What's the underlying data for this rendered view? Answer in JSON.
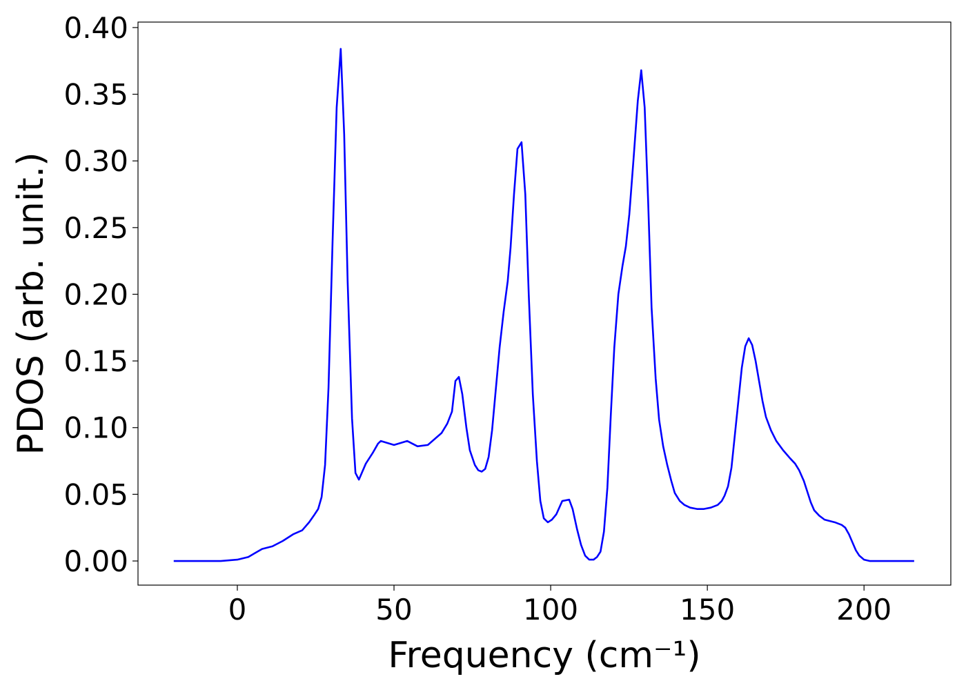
{
  "chart_data": {
    "type": "line",
    "xlabel": "Frequency (cm⁻¹)",
    "ylabel": "PDOS (arb. unit.)",
    "x": [
      -20.3,
      -5.3,
      0,
      3.5,
      5.7,
      7.9,
      11.2,
      14.5,
      17.8,
      20.7,
      22.9,
      24.4,
      25.8,
      26.9,
      28,
      29.1,
      30.4,
      31.7,
      33,
      34.1,
      35.2,
      36.6,
      37.7,
      38.8,
      41,
      43.2,
      44.9,
      45.8,
      50,
      54.2,
      57.5,
      60.8,
      65.2,
      67,
      68.5,
      69.6,
      70.7,
      71.8,
      73.1,
      74.2,
      75.8,
      76.9,
      78,
      79.1,
      80.2,
      81.3,
      83.7,
      85,
      86.3,
      87.2,
      88.3,
      89.4,
      90.7,
      91.9,
      93,
      94.3,
      95.6,
      96.7,
      97.8,
      99.1,
      100.4,
      101.8,
      103.7,
      105.9,
      107,
      108.4,
      109.7,
      111,
      112.3,
      113.7,
      114.8,
      115.9,
      117,
      118.1,
      119.2,
      120.3,
      121.6,
      122.9,
      124,
      125.1,
      126.4,
      127.8,
      128.9,
      130,
      131.1,
      132.2,
      133.5,
      134.6,
      135.9,
      137.2,
      138.5,
      139.6,
      141.2,
      142.7,
      144.5,
      146.7,
      148.9,
      151.1,
      153.3,
      154.6,
      155.5,
      156.6,
      157.7,
      158.8,
      159.9,
      161,
      162.1,
      163.2,
      164.3,
      165.4,
      166.5,
      167.6,
      168.7,
      170.3,
      172,
      174.2,
      176.4,
      178,
      179.3,
      180.8,
      181.9,
      183,
      184.1,
      185.7,
      187.4,
      190.7,
      192.9,
      194,
      195.2,
      196.3,
      197.4,
      198.5,
      200,
      201.8,
      216
    ],
    "series": [
      {
        "color": "#0000ff",
        "values": [
          0,
          0,
          0.001,
          0.003,
          0.006,
          0.009,
          0.011,
          0.015,
          0.02,
          0.023,
          0.029,
          0.034,
          0.039,
          0.048,
          0.072,
          0.13,
          0.24,
          0.34,
          0.384,
          0.32,
          0.21,
          0.107,
          0.066,
          0.061,
          0.073,
          0.081,
          0.088,
          0.09,
          0.087,
          0.09,
          0.086,
          0.087,
          0.096,
          0.103,
          0.112,
          0.135,
          0.138,
          0.125,
          0.1,
          0.083,
          0.072,
          0.068,
          0.067,
          0.069,
          0.078,
          0.098,
          0.16,
          0.187,
          0.21,
          0.235,
          0.275,
          0.309,
          0.314,
          0.275,
          0.2,
          0.125,
          0.075,
          0.045,
          0.032,
          0.029,
          0.031,
          0.035,
          0.045,
          0.046,
          0.039,
          0.024,
          0.012,
          0.004,
          0.001,
          0.001,
          0.003,
          0.007,
          0.022,
          0.055,
          0.11,
          0.16,
          0.2,
          0.221,
          0.236,
          0.26,
          0.3,
          0.345,
          0.368,
          0.34,
          0.27,
          0.19,
          0.137,
          0.106,
          0.086,
          0.072,
          0.06,
          0.051,
          0.045,
          0.042,
          0.04,
          0.039,
          0.039,
          0.04,
          0.042,
          0.045,
          0.049,
          0.056,
          0.07,
          0.095,
          0.12,
          0.145,
          0.161,
          0.167,
          0.162,
          0.15,
          0.135,
          0.12,
          0.108,
          0.098,
          0.09,
          0.083,
          0.077,
          0.073,
          0.068,
          0.06,
          0.052,
          0.044,
          0.038,
          0.034,
          0.031,
          0.029,
          0.027,
          0.025,
          0.02,
          0.014,
          0.008,
          0.004,
          0.001,
          0,
          0
        ]
      }
    ],
    "xlim": [
      -31.7,
      227.7
    ],
    "ylim": [
      -0.0181,
      0.4041
    ],
    "xticks": [
      0,
      50,
      100,
      150,
      200
    ],
    "yticks": [
      {
        "value": 0,
        "label": "0.00"
      },
      {
        "value": 0.05,
        "label": "0.05"
      },
      {
        "value": 0.1,
        "label": "0.10"
      },
      {
        "value": 0.15,
        "label": "0.15"
      },
      {
        "value": 0.2,
        "label": "0.20"
      },
      {
        "value": 0.25,
        "label": "0.25"
      },
      {
        "value": 0.3,
        "label": "0.30"
      },
      {
        "value": 0.35,
        "label": "0.35"
      },
      {
        "value": 0.4,
        "label": "0.40"
      }
    ]
  }
}
